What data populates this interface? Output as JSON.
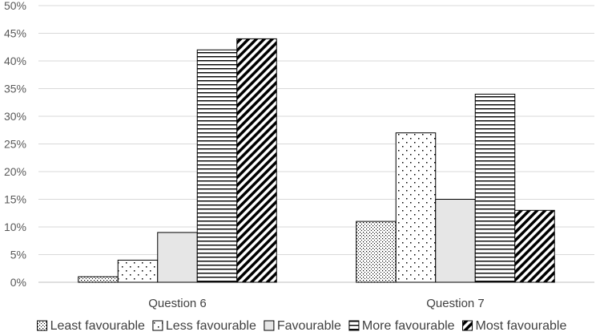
{
  "chart_data": {
    "type": "bar",
    "categories": [
      "Question 6",
      "Question 7"
    ],
    "series": [
      {
        "name": "Least favourable",
        "values": [
          1,
          11
        ]
      },
      {
        "name": "Less favourable",
        "values": [
          4,
          27
        ]
      },
      {
        "name": "Favourable",
        "values": [
          9,
          15
        ]
      },
      {
        "name": "More favourable",
        "values": [
          42,
          34
        ]
      },
      {
        "name": "Most favourable",
        "values": [
          44,
          13
        ]
      }
    ],
    "ylim": [
      0,
      50
    ],
    "yticks": [
      "0%",
      "5%",
      "10%",
      "15%",
      "20%",
      "25%",
      "30%",
      "35%",
      "40%",
      "45%",
      "50%"
    ],
    "grid": true,
    "legend_position": "bottom",
    "title": "",
    "xlabel": "",
    "ylabel": ""
  }
}
